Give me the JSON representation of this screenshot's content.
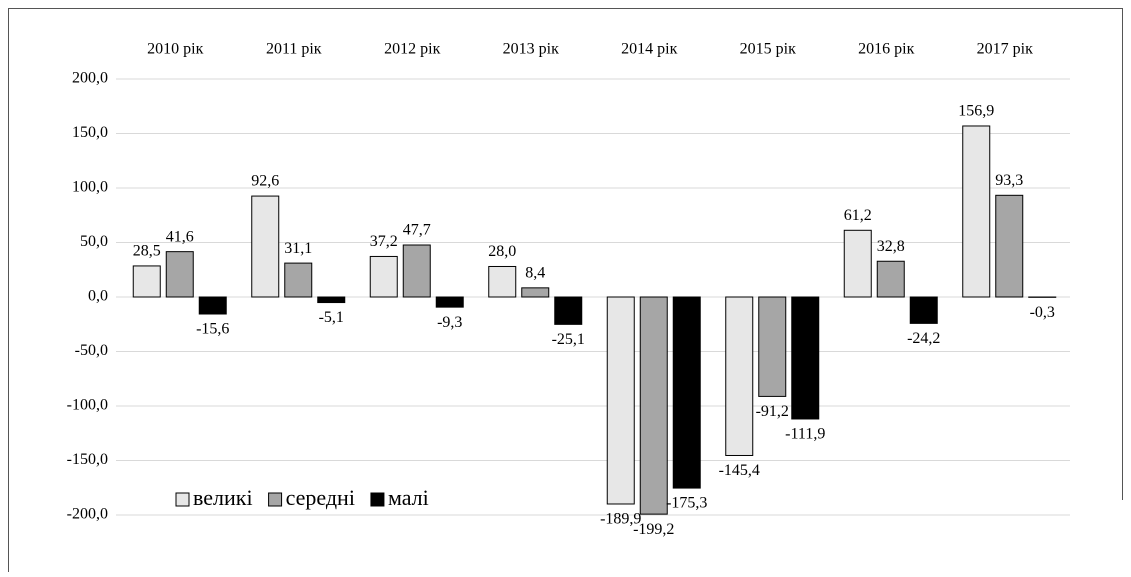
{
  "chart_data": {
    "type": "bar",
    "categories": [
      "2010 рік",
      "2011 рік",
      "2012 рік",
      "2013 рік",
      "2014 рік",
      "2015 рік",
      "2016 рік",
      "2017 рік"
    ],
    "series": [
      {
        "name": "великі",
        "color": "#e7e7e7",
        "values": [
          28.5,
          92.6,
          37.2,
          28.0,
          -189.9,
          -145.4,
          61.2,
          156.9
        ],
        "value_labels": [
          "28,5",
          "92,6",
          "37,2",
          "28,0",
          "-189,9",
          "-145,4",
          "61,2",
          "156,9"
        ]
      },
      {
        "name": "середні",
        "color": "#a6a6a6",
        "values": [
          41.6,
          31.1,
          47.7,
          8.4,
          -199.2,
          -91.2,
          32.8,
          93.3
        ],
        "value_labels": [
          "41,6",
          "31,1",
          "47,7",
          "8,4",
          "-199,2",
          "-91,2",
          "32,8",
          "93,3"
        ]
      },
      {
        "name": "малі",
        "color": "#000000",
        "values": [
          -15.6,
          -5.1,
          -9.3,
          -25.1,
          -175.3,
          -111.9,
          -24.2,
          -0.3
        ],
        "value_labels": [
          "-15,6",
          "-5,1",
          "-9,3",
          "-25,1",
          "-175,3",
          "-111,9",
          "-24,2",
          "-0,3"
        ]
      }
    ],
    "ylim": [
      -200,
      200
    ],
    "yticks": [
      {
        "value": -200,
        "label": "-200,0"
      },
      {
        "value": -150,
        "label": "-150,0"
      },
      {
        "value": -100,
        "label": "-100,0"
      },
      {
        "value": -50,
        "label": "-50,0"
      },
      {
        "value": 0,
        "label": "0,0"
      },
      {
        "value": 50,
        "label": "50,0"
      },
      {
        "value": 100,
        "label": "100,0"
      },
      {
        "value": 150,
        "label": "150,0"
      },
      {
        "value": 200,
        "label": "200,0"
      }
    ],
    "grid": true,
    "legend": "bottom-left"
  }
}
